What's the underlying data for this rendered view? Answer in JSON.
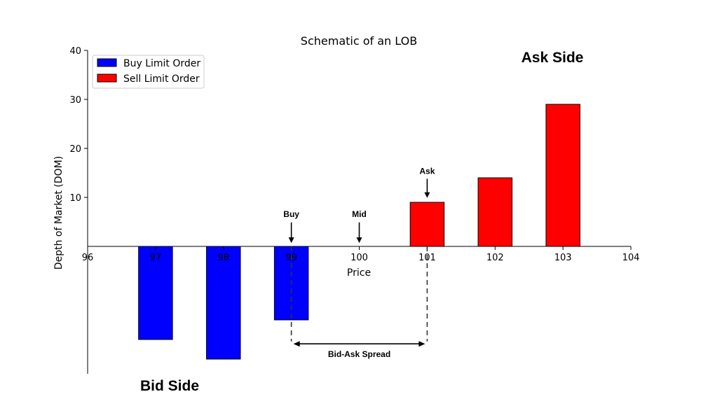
{
  "chart_data": {
    "type": "bar",
    "title": "Schematic of an LOB",
    "xlabel": "Price",
    "ylabel": "Depth of Market (DOM)",
    "xlim": [
      96,
      104
    ],
    "ylim": [
      -26,
      40
    ],
    "xticks": [
      96,
      97,
      98,
      99,
      100,
      101,
      102,
      103,
      104
    ],
    "yticks": [
      10,
      20,
      30,
      40
    ],
    "grid": false,
    "legend_position": "top-left",
    "series": [
      {
        "name": "Buy Limit Order",
        "color": "#0000ff",
        "x": [
          97,
          98,
          99
        ],
        "values": [
          -19,
          -23,
          -15
        ]
      },
      {
        "name": "Sell Limit Order",
        "color": "#ff0000",
        "x": [
          101,
          102,
          103
        ],
        "values": [
          9,
          14,
          29
        ]
      }
    ],
    "annotations": {
      "buy": {
        "text": "Buy",
        "x": 99
      },
      "mid": {
        "text": "Mid",
        "x": 100
      },
      "ask": {
        "text": "Ask",
        "x": 101
      },
      "spread": {
        "text": "Bid-Ask Spread",
        "from": 99,
        "to": 101
      },
      "ask_side": "Ask Side",
      "bid_side": "Bid Side"
    }
  }
}
